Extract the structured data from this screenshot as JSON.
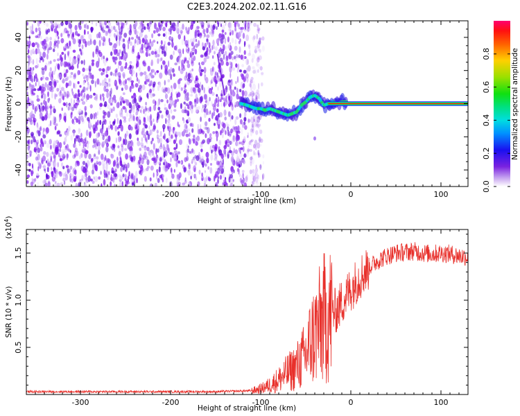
{
  "title": "C2E3.2024.202.02.11.G16",
  "chart_data": [
    {
      "type": "heatmap",
      "name": "spectrogram",
      "xlabel": "Height of straight line (km)",
      "ylabel": "Frequency (Hz)",
      "xlim": [
        -360,
        130
      ],
      "ylim": [
        -50,
        50
      ],
      "xticks": [
        -300,
        -200,
        -100,
        0,
        100
      ],
      "yticks": [
        -40,
        -20,
        0,
        20,
        40
      ],
      "noise_region_x": [
        -360,
        -100
      ],
      "signal_track": {
        "x": [
          -122,
          -115,
          -110,
          -105,
          -100,
          -95,
          -90,
          -85,
          -80,
          -75,
          -70,
          -65,
          -60,
          -55,
          -50,
          -45,
          -40,
          -35,
          -30,
          -25,
          -20,
          -15,
          -10,
          -5,
          0,
          10,
          30,
          60,
          90,
          130
        ],
        "y": [
          0,
          -1,
          -2,
          -3,
          -3,
          -4,
          -3,
          -4,
          -5,
          -6,
          -7,
          -6,
          -5,
          -1,
          1,
          4,
          5,
          3,
          -1,
          0,
          1,
          0,
          1,
          1,
          1,
          0,
          0,
          0,
          0,
          0
        ]
      },
      "colorbar": {
        "label": "Normalized spectral amplitude",
        "range": [
          0.0,
          1.0
        ],
        "ticks": [
          0.0,
          0.2,
          0.4,
          0.6,
          0.8
        ],
        "tick_labels": [
          "0.0",
          "0.2",
          "0.4",
          "0.6",
          "0.8"
        ]
      }
    },
    {
      "type": "line",
      "name": "snr",
      "xlabel": "Height of straight line (km)",
      "ylabel": "SNR (10 * v/v)",
      "multiplier_label": "(x10",
      "multiplier_exp": "4",
      "multiplier_close": ")",
      "xlim": [
        -360,
        130
      ],
      "ylim": [
        0,
        1.75
      ],
      "xticks": [
        -300,
        -200,
        -100,
        0,
        100
      ],
      "yticks": [
        0.5,
        1.0,
        1.5
      ],
      "ytick_labels": [
        "0.5",
        "1.0",
        "1.5"
      ],
      "color": "#e8302b",
      "series": [
        {
          "x": [
            -360,
            -150,
            -110,
            -100,
            -90,
            -80,
            -70,
            -60,
            -50,
            -45,
            -40,
            -35,
            -30,
            -25,
            -20,
            -15,
            -10,
            -5,
            0,
            10,
            20,
            30,
            40,
            50,
            60,
            70,
            80,
            90,
            100,
            110,
            120,
            130
          ],
          "values": [
            0.03,
            0.03,
            0.04,
            0.06,
            0.1,
            0.16,
            0.23,
            0.3,
            0.42,
            0.55,
            0.65,
            0.72,
            0.8,
            0.84,
            0.87,
            0.9,
            0.98,
            1.05,
            1.12,
            1.25,
            1.35,
            1.42,
            1.47,
            1.5,
            1.51,
            1.52,
            1.5,
            1.49,
            1.5,
            1.49,
            1.47,
            1.46
          ]
        }
      ]
    }
  ]
}
